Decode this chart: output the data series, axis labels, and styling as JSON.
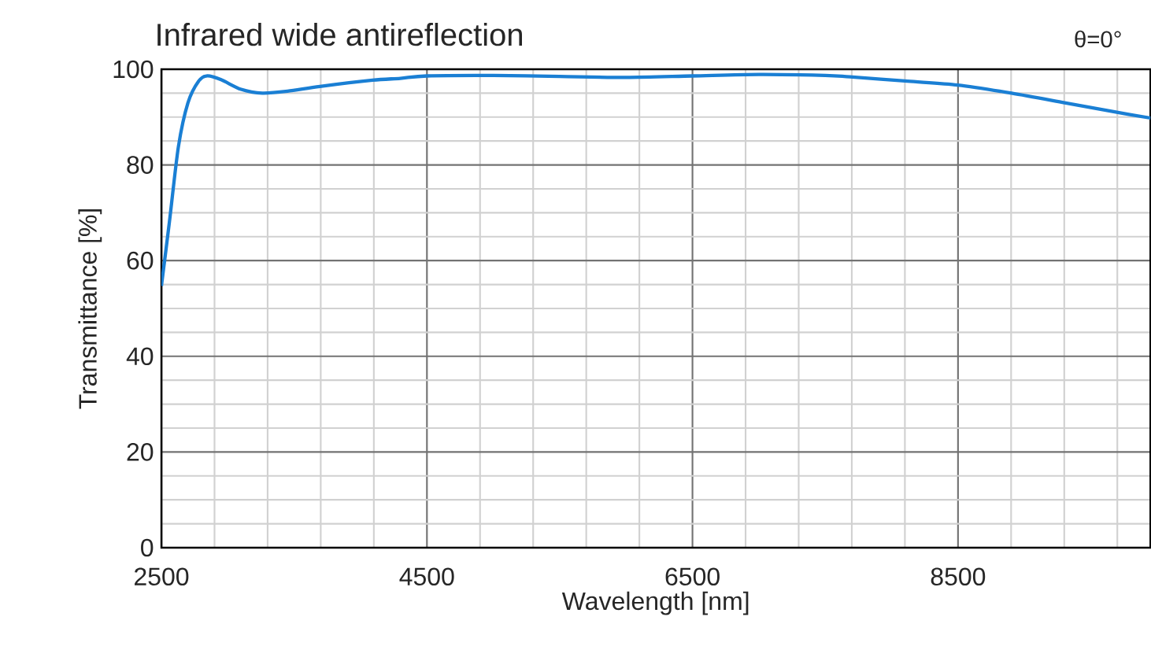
{
  "chart_data": {
    "type": "line",
    "title": "Infrared wide antireflection",
    "annotations": [
      "θ=0°"
    ],
    "xlabel": "Wavelength [nm]",
    "ylabel": "Transmittance [%]",
    "x": [
      2500,
      2560,
      2628,
      2700,
      2780,
      2846,
      2950,
      3100,
      3260,
      3450,
      3694,
      4090,
      4300,
      4500,
      5000,
      5500,
      6000,
      6500,
      7000,
      7500,
      7686,
      8120,
      8500,
      8903,
      9303,
      9696,
      9950
    ],
    "series": [
      {
        "color": "#1a7fd4",
        "values": [
          54.7,
          68,
          83.8,
          93,
          97.5,
          98.6,
          97.8,
          95.8,
          95.0,
          95.4,
          96.4,
          97.7,
          98.1,
          98.6,
          98.7,
          98.5,
          98.3,
          98.6,
          98.9,
          98.7,
          98.4,
          97.5,
          96.7,
          95.0,
          93.0,
          91.0,
          89.8
        ]
      }
    ],
    "xlim": [
      2500,
      9950
    ],
    "ylim": [
      0,
      100
    ],
    "xticks": [
      2500,
      {
        "value": 2900,
        "label": null
      },
      {
        "value": 3300,
        "label": null
      },
      {
        "value": 3700,
        "label": null
      },
      {
        "value": 4100,
        "label": null
      },
      4500,
      {
        "value": 4900,
        "label": null
      },
      {
        "value": 5300,
        "label": null
      },
      {
        "value": 5700,
        "label": null
      },
      {
        "value": 6100,
        "label": null
      },
      6500,
      {
        "value": 6900,
        "label": null
      },
      {
        "value": 7300,
        "label": null
      },
      {
        "value": 7700,
        "label": null
      },
      {
        "value": 8100,
        "label": null
      },
      8500,
      {
        "value": 8900,
        "label": null
      },
      {
        "value": 9300,
        "label": null
      },
      {
        "value": 9700,
        "label": null
      }
    ],
    "yticks": [
      0,
      {
        "value": 5,
        "label": null
      },
      {
        "value": 10,
        "label": null
      },
      {
        "value": 15,
        "label": null
      },
      20,
      {
        "value": 25,
        "label": null
      },
      {
        "value": 30,
        "label": null
      },
      {
        "value": 35,
        "label": null
      },
      40,
      {
        "value": 45,
        "label": null
      },
      {
        "value": 50,
        "label": null
      },
      {
        "value": 55,
        "label": null
      },
      60,
      {
        "value": 65,
        "label": null
      },
      {
        "value": 70,
        "label": null
      },
      {
        "value": 75,
        "label": null
      },
      80,
      {
        "value": 85,
        "label": null
      },
      {
        "value": 90,
        "label": null
      },
      {
        "value": 95,
        "label": null
      },
      100
    ],
    "grid": true,
    "marker": "none",
    "line_style": "solid"
  }
}
